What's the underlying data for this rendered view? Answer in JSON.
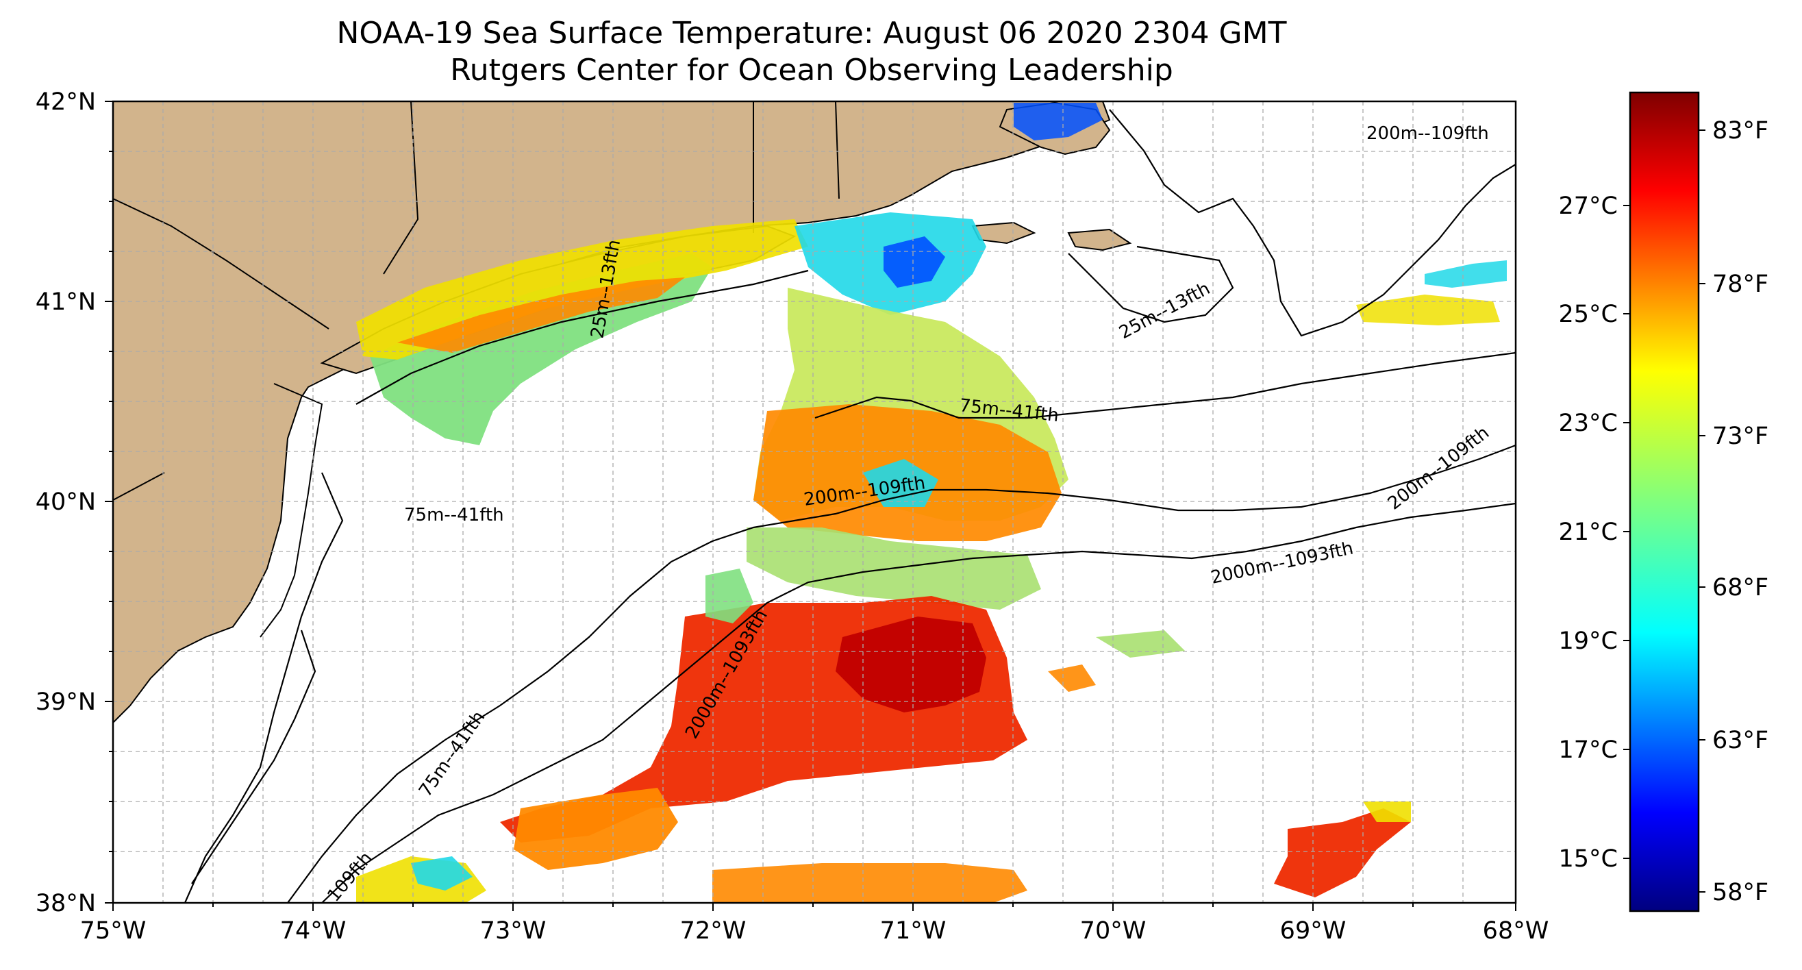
{
  "title": {
    "line1": "NOAA-19 Sea Surface Temperature: August 06 2020 2304 GMT",
    "line2": "Rutgers Center for Ocean Observing Leadership"
  },
  "axes": {
    "lon_labels": [
      "75°W",
      "74°W",
      "73°W",
      "72°W",
      "71°W",
      "70°W",
      "69°W",
      "68°W"
    ],
    "lat_labels": [
      "42°N",
      "41°N",
      "40°N",
      "39°N",
      "38°N"
    ],
    "lon_range": [
      -75,
      -68
    ],
    "lat_range": [
      38,
      42
    ],
    "gridlines": "dashed"
  },
  "colorbar": {
    "celsius_labels": [
      "27°C",
      "25°C",
      "23°C",
      "21°C",
      "19°C",
      "17°C",
      "15°C"
    ],
    "fahrenheit_labels": [
      "83°F",
      "78°F",
      "73°F",
      "68°F",
      "63°F",
      "58°F"
    ],
    "colormap": "jet",
    "colors": [
      "#00007f",
      "#0000ff",
      "#007fff",
      "#00ffff",
      "#7fff7f",
      "#ffff00",
      "#ff7f00",
      "#ff0000",
      "#7f0000"
    ]
  },
  "contour_labels": {
    "shelf_75m_offshore": "75m--41fth",
    "shelf_200m_mid": "200m--109fth",
    "deep_2000m_east": "2000m--1093fth",
    "deep_2000m_sw": "2000m--1093fth",
    "shelf_200m_east": "200m--109fth",
    "shelf_200m_ne": "200m--109fth",
    "nearshore_75m_nj": "75m--41fth",
    "nearshore_75m_sw": "75m--41fth",
    "nearshore_109fth_sw": "109fth",
    "nantucket_25m": "25m--13fth",
    "long_island_25m": "25m--13fth"
  },
  "land_color": "#d2b48c",
  "sst_colors": {
    "blue": "#0050ff",
    "cyan": "#20d8e8",
    "green": "#7fe07f",
    "yellow": "#f0e000",
    "orange": "#ff8a00",
    "red": "#ee2a00",
    "dark_red": "#c00000"
  }
}
